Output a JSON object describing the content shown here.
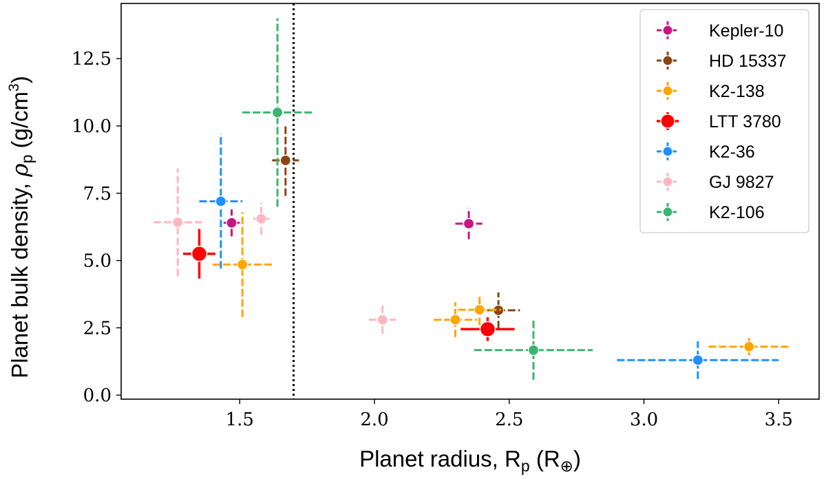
{
  "chart_data": {
    "type": "scatter",
    "title": "",
    "xlabel": "Planet radius, Rp (R⊕)",
    "ylabel": "Planet bulk density, ρp (g/cm³)",
    "xlabel_parts": {
      "main": "Planet radius, R",
      "sub": "p",
      "unit_open": " (R",
      "unit_sub": "⊕",
      "unit_close": ")"
    },
    "ylabel_parts": {
      "main": "Planet bulk density, ",
      "rho": "ρ",
      "sub": "p",
      "unit_open": " (g/cm",
      "unit_sup": "3",
      "unit_close": ")"
    },
    "xlim": [
      1.06,
      3.65
    ],
    "ylim": [
      -0.15,
      14.55
    ],
    "xticks": [
      1.5,
      2.0,
      2.5,
      3.0,
      3.5
    ],
    "xtick_labels": [
      "1.5",
      "2.0",
      "2.5",
      "3.0",
      "3.5"
    ],
    "yticks": [
      0.0,
      2.5,
      5.0,
      7.5,
      10.0,
      12.5
    ],
    "ytick_labels": [
      "0.0",
      "2.5",
      "5.0",
      "7.5",
      "10.0",
      "12.5"
    ],
    "vline_x": 1.7,
    "legend_position": "top-right",
    "series": [
      {
        "name": "Kepler-10",
        "color": "#c71585",
        "dashed": true,
        "marker": "small",
        "points": [
          {
            "x": 1.47,
            "y": 6.4,
            "xerr": 0.03,
            "yerr": 0.5
          },
          {
            "x": 2.35,
            "y": 6.37,
            "xerr": 0.05,
            "yerr": 0.58
          }
        ]
      },
      {
        "name": "HD 15337",
        "color": "#8b4513",
        "dashed": true,
        "marker": "small",
        "points": [
          {
            "x": 1.67,
            "y": 8.72,
            "xerr": 0.05,
            "yerr": 1.32
          },
          {
            "x": 2.46,
            "y": 3.15,
            "xerr": 0.08,
            "yerr": 0.67
          }
        ]
      },
      {
        "name": "K2-138",
        "color": "#ffa500",
        "dashed": true,
        "marker": "small",
        "points": [
          {
            "x": 1.51,
            "y": 4.85,
            "xerr": 0.11,
            "yerr": 1.95
          },
          {
            "x": 2.3,
            "y": 2.8,
            "xerr": 0.08,
            "yerr": 0.65
          },
          {
            "x": 2.39,
            "y": 3.17,
            "xerr": 0.08,
            "yerr": 0.57
          },
          {
            "x": 3.39,
            "y": 1.8,
            "xerr": 0.15,
            "yerr": 0.32
          }
        ]
      },
      {
        "name": "LTT 3780",
        "color": "#ff0000",
        "dashed": false,
        "marker": "large",
        "points": [
          {
            "x": 1.35,
            "y": 5.25,
            "xerr": 0.06,
            "yerr": 0.92
          },
          {
            "x": 2.42,
            "y": 2.45,
            "xerr": 0.1,
            "yerr": 0.44
          }
        ]
      },
      {
        "name": "K2-36",
        "color": "#1e90ff",
        "dashed": true,
        "marker": "small",
        "points": [
          {
            "x": 1.43,
            "y": 7.2,
            "xerr": 0.08,
            "yerr": 2.5
          },
          {
            "x": 3.2,
            "y": 1.3,
            "xerr": 0.3,
            "yerr": 0.7
          }
        ]
      },
      {
        "name": "GJ 9827",
        "color": "#ffb6c1",
        "dashed": true,
        "marker": "small",
        "points": [
          {
            "x": 1.27,
            "y": 6.42,
            "xerr": 0.09,
            "yerr": 2.0
          },
          {
            "x": 1.58,
            "y": 6.55,
            "xerr": 0.03,
            "yerr": 0.6
          },
          {
            "x": 2.03,
            "y": 2.8,
            "xerr": 0.05,
            "yerr": 0.52
          }
        ]
      },
      {
        "name": "K2-106",
        "color": "#3cb371",
        "dashed": true,
        "marker": "small",
        "points": [
          {
            "x": 1.64,
            "y": 10.5,
            "xerr": 0.13,
            "yerr": 3.5
          },
          {
            "x": 2.59,
            "y": 1.67,
            "xerr": 0.22,
            "yerr": 1.1
          }
        ]
      }
    ]
  }
}
